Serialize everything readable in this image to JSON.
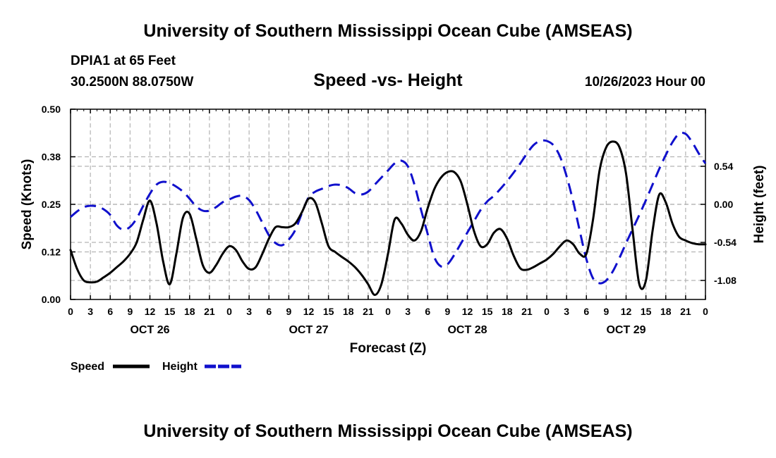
{
  "header": {
    "title": "University of Southern Mississippi Ocean Cube (AMSEAS)",
    "station": "DPIA1 at 65 Feet",
    "coords": "30.2500N  88.0750W",
    "subtitle": "Speed -vs- Height",
    "datetime": "10/26/2023 Hour 00"
  },
  "footer": {
    "title": "University of Southern Mississippi Ocean Cube (AMSEAS)"
  },
  "chart_data": {
    "type": "line",
    "title": "Speed -vs- Height",
    "xlabel": "Forecast (Z)",
    "ylabel": "Speed (Knots)",
    "y2label": "Height (feet)",
    "x_hours_range": [
      0,
      96
    ],
    "x_tick_hours": [
      0,
      3,
      6,
      9,
      12,
      15,
      18,
      21,
      24,
      27,
      30,
      33,
      36,
      39,
      42,
      45,
      48,
      51,
      54,
      57,
      60,
      63,
      66,
      69,
      72,
      75,
      78,
      81,
      84,
      87,
      90,
      93,
      96
    ],
    "x_tick_labels": [
      "0",
      "3",
      "6",
      "9",
      "12",
      "15",
      "18",
      "21",
      "0",
      "3",
      "6",
      "9",
      "12",
      "15",
      "18",
      "21",
      "0",
      "3",
      "6",
      "9",
      "12",
      "15",
      "18",
      "21",
      "0",
      "3",
      "6",
      "9",
      "12",
      "15",
      "18",
      "21",
      "0"
    ],
    "day_labels": [
      {
        "label": "OCT 26",
        "hour": 12
      },
      {
        "label": "OCT 27",
        "hour": 36
      },
      {
        "label": "OCT 28",
        "hour": 60
      },
      {
        "label": "OCT 29",
        "hour": 84
      }
    ],
    "y_left": {
      "range": [
        0,
        0.5
      ],
      "ticks": [
        0,
        0.125,
        0.25,
        0.375,
        0.5
      ],
      "tick_labels": [
        "0.00",
        "0.12",
        "0.25",
        "0.38",
        "0.50"
      ]
    },
    "y_right": {
      "range": [
        -1.35,
        1.35
      ],
      "ticks": [
        -1.08,
        -0.54,
        0,
        0.54
      ],
      "tick_labels": [
        "-1.08",
        "-0.54",
        "0.00",
        "0.54"
      ]
    },
    "grid": true,
    "legend_position": "bottom-left",
    "series": [
      {
        "name": "Speed",
        "axis": "left",
        "color": "#000000",
        "dash": "solid",
        "points": [
          [
            0,
            0.13
          ],
          [
            1,
            0.08
          ],
          [
            2,
            0.05
          ],
          [
            3,
            0.045
          ],
          [
            4,
            0.047
          ],
          [
            5,
            0.058
          ],
          [
            6,
            0.07
          ],
          [
            7,
            0.085
          ],
          [
            8,
            0.1
          ],
          [
            9,
            0.12
          ],
          [
            10,
            0.15
          ],
          [
            11,
            0.21
          ],
          [
            12,
            0.26
          ],
          [
            13,
            0.2
          ],
          [
            14,
            0.1
          ],
          [
            15,
            0.04
          ],
          [
            16,
            0.12
          ],
          [
            17,
            0.215
          ],
          [
            18,
            0.225
          ],
          [
            19,
            0.16
          ],
          [
            20,
            0.09
          ],
          [
            21,
            0.07
          ],
          [
            22,
            0.09
          ],
          [
            23,
            0.12
          ],
          [
            24,
            0.14
          ],
          [
            25,
            0.13
          ],
          [
            26,
            0.1
          ],
          [
            27,
            0.08
          ],
          [
            28,
            0.085
          ],
          [
            29,
            0.12
          ],
          [
            30,
            0.16
          ],
          [
            31,
            0.19
          ],
          [
            32,
            0.19
          ],
          [
            33,
            0.19
          ],
          [
            34,
            0.2
          ],
          [
            35,
            0.23
          ],
          [
            36,
            0.265
          ],
          [
            37,
            0.255
          ],
          [
            38,
            0.2
          ],
          [
            39,
            0.14
          ],
          [
            40,
            0.125
          ],
          [
            41,
            0.112
          ],
          [
            42,
            0.1
          ],
          [
            43,
            0.085
          ],
          [
            44,
            0.065
          ],
          [
            45,
            0.04
          ],
          [
            46,
            0.012
          ],
          [
            47,
            0.04
          ],
          [
            48,
            0.12
          ],
          [
            49,
            0.21
          ],
          [
            50,
            0.2
          ],
          [
            51,
            0.17
          ],
          [
            52,
            0.155
          ],
          [
            53,
            0.18
          ],
          [
            54,
            0.24
          ],
          [
            55,
            0.29
          ],
          [
            56,
            0.32
          ],
          [
            57,
            0.335
          ],
          [
            58,
            0.335
          ],
          [
            59,
            0.31
          ],
          [
            60,
            0.25
          ],
          [
            61,
            0.18
          ],
          [
            62,
            0.14
          ],
          [
            63,
            0.145
          ],
          [
            64,
            0.175
          ],
          [
            65,
            0.185
          ],
          [
            66,
            0.16
          ],
          [
            67,
            0.115
          ],
          [
            68,
            0.082
          ],
          [
            69,
            0.078
          ],
          [
            70,
            0.085
          ],
          [
            71,
            0.095
          ],
          [
            72,
            0.105
          ],
          [
            73,
            0.12
          ],
          [
            74,
            0.14
          ],
          [
            75,
            0.155
          ],
          [
            76,
            0.145
          ],
          [
            77,
            0.12
          ],
          [
            78,
            0.12
          ],
          [
            79,
            0.21
          ],
          [
            80,
            0.34
          ],
          [
            81,
            0.4
          ],
          [
            82,
            0.415
          ],
          [
            83,
            0.4
          ],
          [
            84,
            0.33
          ],
          [
            85,
            0.18
          ],
          [
            86,
            0.04
          ],
          [
            87,
            0.05
          ],
          [
            88,
            0.18
          ],
          [
            89,
            0.275
          ],
          [
            90,
            0.255
          ],
          [
            91,
            0.2
          ],
          [
            92,
            0.165
          ],
          [
            93,
            0.155
          ],
          [
            94,
            0.148
          ],
          [
            95,
            0.145
          ],
          [
            96,
            0.145
          ]
        ]
      },
      {
        "name": "Height",
        "axis": "right",
        "color": "#1010cc",
        "dash": "dashed",
        "points": [
          [
            0,
            -0.18
          ],
          [
            1,
            -0.1
          ],
          [
            2,
            -0.04
          ],
          [
            3,
            -0.02
          ],
          [
            4,
            -0.03
          ],
          [
            5,
            -0.07
          ],
          [
            6,
            -0.15
          ],
          [
            7,
            -0.3
          ],
          [
            8,
            -0.36
          ],
          [
            9,
            -0.32
          ],
          [
            10,
            -0.2
          ],
          [
            11,
            -0.02
          ],
          [
            12,
            0.15
          ],
          [
            13,
            0.28
          ],
          [
            14,
            0.32
          ],
          [
            15,
            0.3
          ],
          [
            16,
            0.25
          ],
          [
            17,
            0.18
          ],
          [
            18,
            0.08
          ],
          [
            19,
            -0.03
          ],
          [
            20,
            -0.09
          ],
          [
            21,
            -0.09
          ],
          [
            22,
            -0.04
          ],
          [
            23,
            0.03
          ],
          [
            24,
            0.07
          ],
          [
            25,
            0.11
          ],
          [
            26,
            0.12
          ],
          [
            27,
            0.06
          ],
          [
            28,
            -0.08
          ],
          [
            29,
            -0.26
          ],
          [
            30,
            -0.44
          ],
          [
            31,
            -0.55
          ],
          [
            32,
            -0.58
          ],
          [
            33,
            -0.5
          ],
          [
            34,
            -0.36
          ],
          [
            35,
            -0.12
          ],
          [
            36,
            0.1
          ],
          [
            37,
            0.18
          ],
          [
            38,
            0.22
          ],
          [
            39,
            0.26
          ],
          [
            40,
            0.28
          ],
          [
            41,
            0.27
          ],
          [
            42,
            0.23
          ],
          [
            43,
            0.16
          ],
          [
            44,
            0.14
          ],
          [
            45,
            0.18
          ],
          [
            46,
            0.28
          ],
          [
            47,
            0.38
          ],
          [
            48,
            0.48
          ],
          [
            49,
            0.58
          ],
          [
            50,
            0.62
          ],
          [
            51,
            0.54
          ],
          [
            52,
            0.28
          ],
          [
            53,
            -0.08
          ],
          [
            54,
            -0.42
          ],
          [
            55,
            -0.75
          ],
          [
            56,
            -0.88
          ],
          [
            57,
            -0.85
          ],
          [
            58,
            -0.72
          ],
          [
            59,
            -0.56
          ],
          [
            60,
            -0.4
          ],
          [
            61,
            -0.24
          ],
          [
            62,
            -0.08
          ],
          [
            63,
            0.04
          ],
          [
            64,
            0.12
          ],
          [
            65,
            0.22
          ],
          [
            66,
            0.33
          ],
          [
            67,
            0.45
          ],
          [
            68,
            0.58
          ],
          [
            69,
            0.72
          ],
          [
            70,
            0.84
          ],
          [
            71,
            0.9
          ],
          [
            72,
            0.9
          ],
          [
            73,
            0.84
          ],
          [
            74,
            0.68
          ],
          [
            75,
            0.4
          ],
          [
            76,
            0.04
          ],
          [
            77,
            -0.38
          ],
          [
            78,
            -0.78
          ],
          [
            79,
            -1.05
          ],
          [
            80,
            -1.12
          ],
          [
            81,
            -1.08
          ],
          [
            82,
            -0.95
          ],
          [
            83,
            -0.76
          ],
          [
            84,
            -0.55
          ],
          [
            85,
            -0.35
          ],
          [
            86,
            -0.15
          ],
          [
            87,
            0.06
          ],
          [
            88,
            0.28
          ],
          [
            89,
            0.5
          ],
          [
            90,
            0.7
          ],
          [
            91,
            0.88
          ],
          [
            92,
            1.0
          ],
          [
            93,
            1.0
          ],
          [
            94,
            0.88
          ],
          [
            95,
            0.72
          ],
          [
            96,
            0.58
          ]
        ]
      }
    ]
  }
}
